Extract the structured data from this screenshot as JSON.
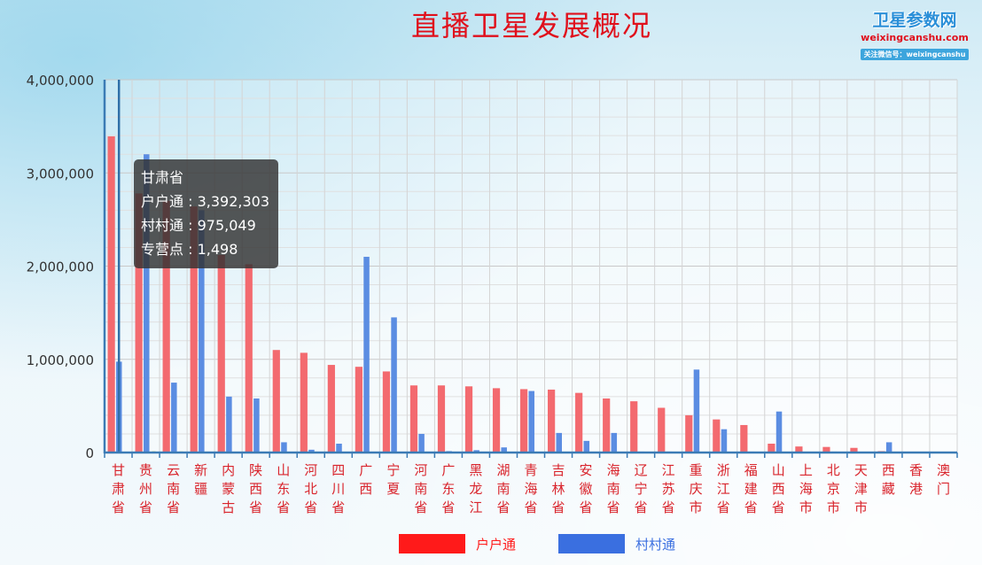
{
  "logo": {
    "main": "卫星参数网",
    "site": "weixingcanshu.com",
    "wechat": "关注微信号：weixingcanshu"
  },
  "tooltip": {
    "title": "甘肃省",
    "rows": [
      {
        "label": "户户通",
        "value": "3,392,303"
      },
      {
        "label": "村村通",
        "value": "975,049"
      },
      {
        "label": "专营点",
        "value": "1,498"
      }
    ]
  },
  "colors": {
    "hu_bar": "#f36a6f",
    "cun_bar": "#5b8de2",
    "hu_legend": "#ff1a1a",
    "cun_legend": "#3a6fe0",
    "title": "#e0101c"
  },
  "chart_data": {
    "type": "bar",
    "title": "直播卫星发展概况",
    "xlabel": "",
    "ylabel": "",
    "ylim": [
      0,
      4000000
    ],
    "yticks": [
      "0",
      "1,000,000",
      "2,000,000",
      "3,000,000",
      "4,000,000"
    ],
    "grid": true,
    "legend_position": "bottom-center",
    "categories": [
      "甘肃省",
      "贵州省",
      "云南省",
      "新疆",
      "内蒙古",
      "陕西省",
      "山东省",
      "河北省",
      "四川省",
      "广西",
      "宁夏",
      "河南省",
      "广东省",
      "黑龙江",
      "湖南省",
      "青海省",
      "吉林省",
      "安徽省",
      "海南省",
      "辽宁省",
      "江苏省",
      "重庆市",
      "浙江省",
      "福建省",
      "山西省",
      "上海市",
      "北京市",
      "天津市",
      "西藏",
      "香港",
      "澳门"
    ],
    "series": [
      {
        "name": "户户通",
        "values": [
          3392303,
          2780000,
          2700000,
          2640000,
          2120000,
          2020000,
          1100000,
          1070000,
          940000,
          920000,
          870000,
          720000,
          720000,
          710000,
          690000,
          680000,
          675000,
          640000,
          580000,
          550000,
          480000,
          400000,
          355000,
          295000,
          95000,
          65000,
          60000,
          50000,
          15000,
          0,
          0
        ]
      },
      {
        "name": "村村通",
        "values": [
          975049,
          3200000,
          750000,
          2600000,
          600000,
          580000,
          110000,
          30000,
          95000,
          2100000,
          1450000,
          200000,
          15000,
          25000,
          55000,
          660000,
          210000,
          125000,
          210000,
          10000,
          10000,
          890000,
          250000,
          10000,
          440000,
          8000,
          10000,
          8000,
          110000,
          0,
          0
        ]
      },
      {
        "name": "专营点",
        "values": [
          1498,
          14000,
          12000,
          10000,
          9000,
          8000,
          7000,
          6000,
          6000,
          5000,
          4000,
          5000,
          4000,
          4000,
          4000,
          3000,
          3000,
          3000,
          3000,
          3000,
          2000,
          2000,
          2000,
          2000,
          2000,
          1000,
          1000,
          1000,
          1000,
          0,
          0
        ]
      }
    ]
  }
}
